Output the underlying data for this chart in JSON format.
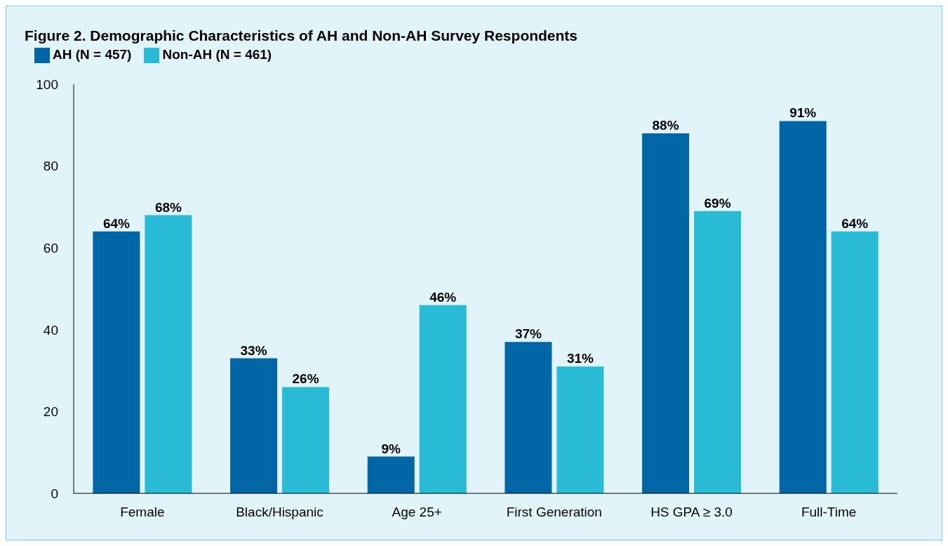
{
  "chart_data": {
    "type": "bar",
    "title": "Figure 2. Demographic Characteristics of AH and Non-AH Survey Respondents",
    "categories": [
      "Female",
      "Black/Hispanic",
      "Age 25+",
      "First Generation",
      "HS GPA ≥ 3.0",
      "Full-Time"
    ],
    "series": [
      {
        "name": "AH (N = 457)",
        "color": "#0066a6",
        "values": [
          64,
          33,
          9,
          37,
          88,
          91
        ],
        "value_labels": [
          "64%",
          "33%",
          "9%",
          "37%",
          "88%",
          "91%"
        ]
      },
      {
        "name": "Non-AH (N = 461)",
        "color": "#29bbd6",
        "values": [
          68,
          26,
          46,
          31,
          69,
          64
        ],
        "value_labels": [
          "68%",
          "26%",
          "46%",
          "31%",
          "69%",
          "64%"
        ]
      }
    ],
    "ylim": [
      0,
      100
    ],
    "yticks": [
      0,
      20,
      40,
      60,
      80,
      100
    ],
    "grid": false,
    "legend": "top left"
  }
}
